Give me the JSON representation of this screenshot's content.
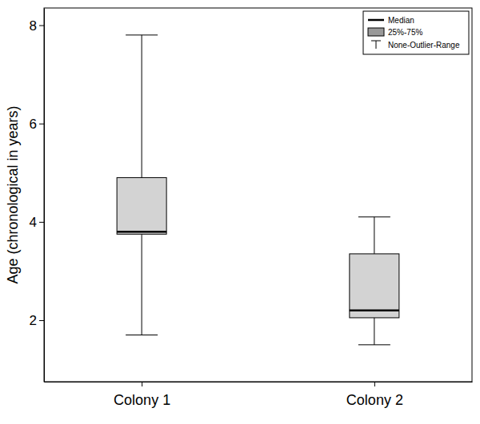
{
  "chart_data": {
    "type": "box",
    "y_label": "Age (chronological in years)",
    "categories": [
      "Colony 1",
      "Colony 2"
    ],
    "min": [
      1.7,
      1.5
    ],
    "q1": [
      3.75,
      2.05
    ],
    "median": [
      3.8,
      2.2
    ],
    "q3": [
      4.9,
      3.35
    ],
    "max": [
      7.8,
      4.1
    ],
    "color": "#d3d3d3",
    "ylim": [
      0.75,
      8.35
    ],
    "yticks": [
      2,
      4,
      6,
      8
    ],
    "legend": "upper right",
    "legend_entries": [
      "Median",
      "25%-75%",
      "None-Outlier-Range"
    ]
  }
}
